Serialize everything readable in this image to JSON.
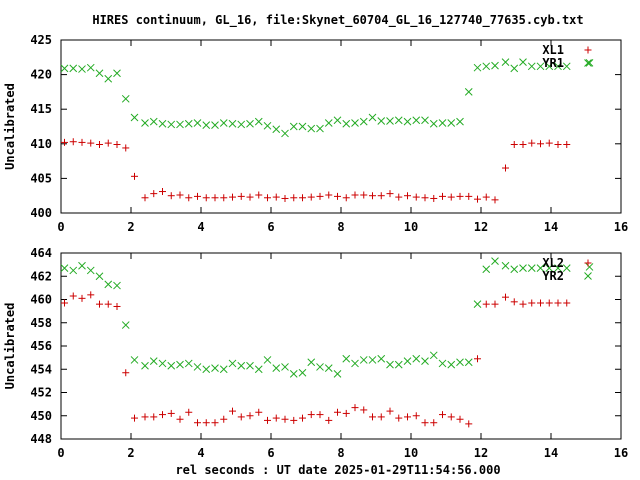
{
  "title": "HIRES continuum, GL_16, file:Skynet_60704_GL_16_127740_77635.cyb.txt",
  "xlabel": "rel seconds : UT date 2025-01-29T11:54:56.000",
  "colors": {
    "red": "#cc0000",
    "green": "#22aa22",
    "axis": "#000000"
  },
  "chart_data": [
    {
      "type": "scatter",
      "ylabel": "Uncalibrated",
      "xlim": [
        0,
        16
      ],
      "ylim": [
        400,
        425
      ],
      "xticks": [
        0,
        2,
        4,
        6,
        8,
        10,
        12,
        14,
        16
      ],
      "yticks": [
        400,
        405,
        410,
        415,
        420,
        425
      ],
      "legend_position": "top-right",
      "grid": false,
      "series": [
        {
          "name": "XL1",
          "marker": "+",
          "color": "#cc0000",
          "x": [
            0.1,
            0.35,
            0.6,
            0.85,
            1.1,
            1.35,
            1.6,
            1.85,
            2.1,
            2.4,
            2.65,
            2.9,
            3.15,
            3.4,
            3.65,
            3.9,
            4.15,
            4.4,
            4.65,
            4.9,
            5.15,
            5.4,
            5.65,
            5.9,
            6.15,
            6.4,
            6.65,
            6.9,
            7.15,
            7.4,
            7.65,
            7.9,
            8.15,
            8.4,
            8.65,
            8.9,
            9.15,
            9.4,
            9.65,
            9.9,
            10.15,
            10.4,
            10.65,
            10.9,
            11.15,
            11.4,
            11.65,
            11.9,
            12.15,
            12.4,
            12.7,
            12.95,
            13.2,
            13.45,
            13.7,
            13.95,
            14.2,
            14.45
          ],
          "y": [
            410.2,
            410.3,
            410.2,
            410.1,
            409.9,
            410.1,
            409.9,
            409.4,
            405.3,
            402.2,
            402.8,
            403.1,
            402.5,
            402.6,
            402.2,
            402.4,
            402.2,
            402.2,
            402.2,
            402.3,
            402.4,
            402.3,
            402.6,
            402.2,
            402.3,
            402.1,
            402.2,
            402.2,
            402.3,
            402.4,
            402.6,
            402.4,
            402.2,
            402.6,
            402.6,
            402.5,
            402.5,
            402.8,
            402.3,
            402.5,
            402.3,
            402.2,
            402.1,
            402.4,
            402.3,
            402.4,
            402.4,
            402.0,
            402.3,
            401.9,
            406.5,
            409.9,
            409.9,
            410.1,
            410.0,
            410.1,
            409.9,
            409.9
          ]
        },
        {
          "name": "YR1",
          "marker": "x",
          "color": "#22aa22",
          "x": [
            0.1,
            0.35,
            0.6,
            0.85,
            1.1,
            1.35,
            1.6,
            1.85,
            2.1,
            2.4,
            2.65,
            2.9,
            3.15,
            3.4,
            3.65,
            3.9,
            4.15,
            4.4,
            4.65,
            4.9,
            5.15,
            5.4,
            5.65,
            5.9,
            6.15,
            6.4,
            6.65,
            6.9,
            7.15,
            7.4,
            7.65,
            7.9,
            8.15,
            8.4,
            8.65,
            8.9,
            9.15,
            9.4,
            9.65,
            9.9,
            10.15,
            10.4,
            10.65,
            10.9,
            11.15,
            11.4,
            11.65,
            11.9,
            12.15,
            12.4,
            12.7,
            12.95,
            13.2,
            13.45,
            13.7,
            13.95,
            14.2,
            14.45,
            15.1
          ],
          "y": [
            420.9,
            420.9,
            420.8,
            421.0,
            420.2,
            419.4,
            420.2,
            416.5,
            413.8,
            413.0,
            413.2,
            412.9,
            412.8,
            412.8,
            412.9,
            413.0,
            412.7,
            412.7,
            413.0,
            412.9,
            412.8,
            412.9,
            413.2,
            412.6,
            412.1,
            411.5,
            412.5,
            412.5,
            412.2,
            412.2,
            413.0,
            413.4,
            412.9,
            413.0,
            413.2,
            413.8,
            413.3,
            413.3,
            413.4,
            413.2,
            413.4,
            413.4,
            412.9,
            413.0,
            413.0,
            413.2,
            417.5,
            421.0,
            421.2,
            421.3,
            421.8,
            420.9,
            421.8,
            421.2,
            421.2,
            421.2,
            421.2,
            421.2,
            421.7
          ]
        }
      ]
    },
    {
      "type": "scatter",
      "ylabel": "Uncalibrated",
      "xlim": [
        0,
        16
      ],
      "ylim": [
        448,
        464
      ],
      "xticks": [
        0,
        2,
        4,
        6,
        8,
        10,
        12,
        14,
        16
      ],
      "yticks": [
        448,
        450,
        452,
        454,
        456,
        458,
        460,
        462,
        464
      ],
      "legend_position": "top-right",
      "grid": false,
      "series": [
        {
          "name": "XL2",
          "marker": "+",
          "color": "#cc0000",
          "x": [
            0.1,
            0.35,
            0.6,
            0.85,
            1.1,
            1.35,
            1.6,
            1.85,
            2.1,
            2.4,
            2.65,
            2.9,
            3.15,
            3.4,
            3.65,
            3.9,
            4.15,
            4.4,
            4.65,
            4.9,
            5.15,
            5.4,
            5.65,
            5.9,
            6.15,
            6.4,
            6.65,
            6.9,
            7.15,
            7.4,
            7.65,
            7.9,
            8.15,
            8.4,
            8.65,
            8.9,
            9.15,
            9.4,
            9.65,
            9.9,
            10.15,
            10.4,
            10.65,
            10.9,
            11.15,
            11.4,
            11.65,
            11.9,
            12.15,
            12.4,
            12.7,
            12.95,
            13.2,
            13.45,
            13.7,
            13.95,
            14.2,
            14.45
          ],
          "y": [
            459.7,
            460.3,
            460.1,
            460.4,
            459.6,
            459.6,
            459.4,
            453.7,
            449.8,
            449.9,
            449.9,
            450.1,
            450.2,
            449.7,
            450.3,
            449.4,
            449.4,
            449.4,
            449.7,
            450.4,
            449.9,
            450.0,
            450.3,
            449.6,
            449.8,
            449.7,
            449.6,
            449.8,
            450.1,
            450.1,
            449.6,
            450.3,
            450.2,
            450.7,
            450.5,
            449.9,
            449.9,
            450.4,
            449.8,
            449.9,
            450.0,
            449.4,
            449.4,
            450.1,
            449.9,
            449.7,
            449.3,
            454.9,
            459.6,
            459.6,
            460.2,
            459.8,
            459.6,
            459.7,
            459.7,
            459.7,
            459.7,
            459.7
          ]
        },
        {
          "name": "YR2",
          "marker": "x",
          "color": "#22aa22",
          "x": [
            0.1,
            0.35,
            0.6,
            0.85,
            1.1,
            1.35,
            1.6,
            1.85,
            2.1,
            2.4,
            2.65,
            2.9,
            3.15,
            3.4,
            3.65,
            3.9,
            4.15,
            4.4,
            4.65,
            4.9,
            5.15,
            5.4,
            5.65,
            5.9,
            6.15,
            6.4,
            6.65,
            6.9,
            7.15,
            7.4,
            7.65,
            7.9,
            8.15,
            8.4,
            8.65,
            8.9,
            9.15,
            9.4,
            9.65,
            9.9,
            10.15,
            10.4,
            10.65,
            10.9,
            11.15,
            11.4,
            11.65,
            11.9,
            12.15,
            12.4,
            12.7,
            12.95,
            13.2,
            13.45,
            13.7,
            13.95,
            14.2,
            14.45,
            15.1
          ],
          "y": [
            462.7,
            462.5,
            462.9,
            462.5,
            462.0,
            461.3,
            461.2,
            457.8,
            454.8,
            454.3,
            454.7,
            454.5,
            454.3,
            454.4,
            454.5,
            454.2,
            454.0,
            454.1,
            454.0,
            454.5,
            454.3,
            454.3,
            454.0,
            454.8,
            454.1,
            454.2,
            453.6,
            453.7,
            454.6,
            454.2,
            454.1,
            453.6,
            454.9,
            454.5,
            454.8,
            454.8,
            454.9,
            454.4,
            454.4,
            454.7,
            454.9,
            454.7,
            455.2,
            454.5,
            454.4,
            454.6,
            454.6,
            459.6,
            462.6,
            463.3,
            462.9,
            462.6,
            462.7,
            462.7,
            462.7,
            462.7,
            462.7,
            462.7,
            462.8
          ]
        }
      ]
    }
  ]
}
